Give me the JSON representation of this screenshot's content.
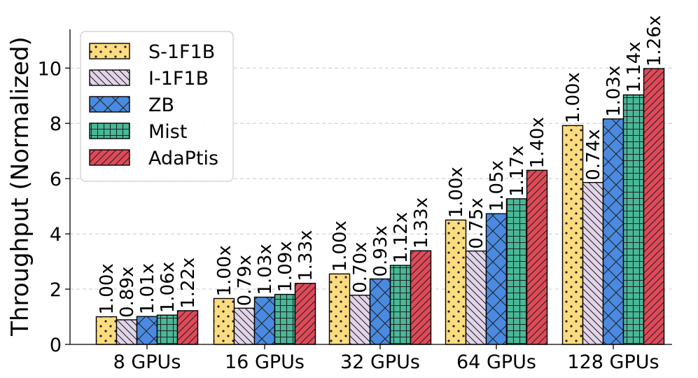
{
  "chart_data": {
    "type": "bar",
    "title": "",
    "xlabel": "",
    "ylabel": "Throughput (Normalized)",
    "ylim": [
      0,
      11.4
    ],
    "yticks": [
      "0",
      "2",
      "4",
      "6",
      "8",
      "10"
    ],
    "grid": "horizontal dashed",
    "legend_position": "top-left",
    "categories": [
      "8 GPUs",
      "16 GPUs",
      "32 GPUs",
      "64 GPUs",
      "128 GPUs"
    ],
    "series": [
      {
        "name": "S-1F1B",
        "color": "#fddc80",
        "pattern": "dots",
        "values": [
          1.0,
          1.66,
          2.55,
          4.5,
          7.92
        ],
        "labels": [
          "1.00x",
          "1.00x",
          "1.00x",
          "1.00x",
          "1.00x"
        ]
      },
      {
        "name": "I-1F1B",
        "color": "#e2d5e9",
        "pattern": "backslash",
        "values": [
          0.89,
          1.31,
          1.78,
          3.38,
          5.86
        ],
        "labels": [
          "0.89x",
          "0.79x",
          "0.70x",
          "0.75x",
          "0.74x"
        ]
      },
      {
        "name": "ZB",
        "color": "#4a8ae0",
        "pattern": "crosshatch",
        "values": [
          1.01,
          1.71,
          2.37,
          4.73,
          8.16
        ],
        "labels": [
          "1.01x",
          "1.03x",
          "0.93x",
          "1.05x",
          "1.03x"
        ]
      },
      {
        "name": "Mist",
        "color": "#49b898",
        "pattern": "grid",
        "values": [
          1.06,
          1.81,
          2.86,
          5.27,
          9.03
        ],
        "labels": [
          "1.06x",
          "1.09x",
          "1.12x",
          "1.17x",
          "1.14x"
        ]
      },
      {
        "name": "AdaPtis",
        "color": "#e04a58",
        "pattern": "slash",
        "values": [
          1.22,
          2.21,
          3.39,
          6.3,
          9.98
        ],
        "labels": [
          "1.22x",
          "1.33x",
          "1.33x",
          "1.40x",
          "1.26x"
        ]
      }
    ]
  }
}
